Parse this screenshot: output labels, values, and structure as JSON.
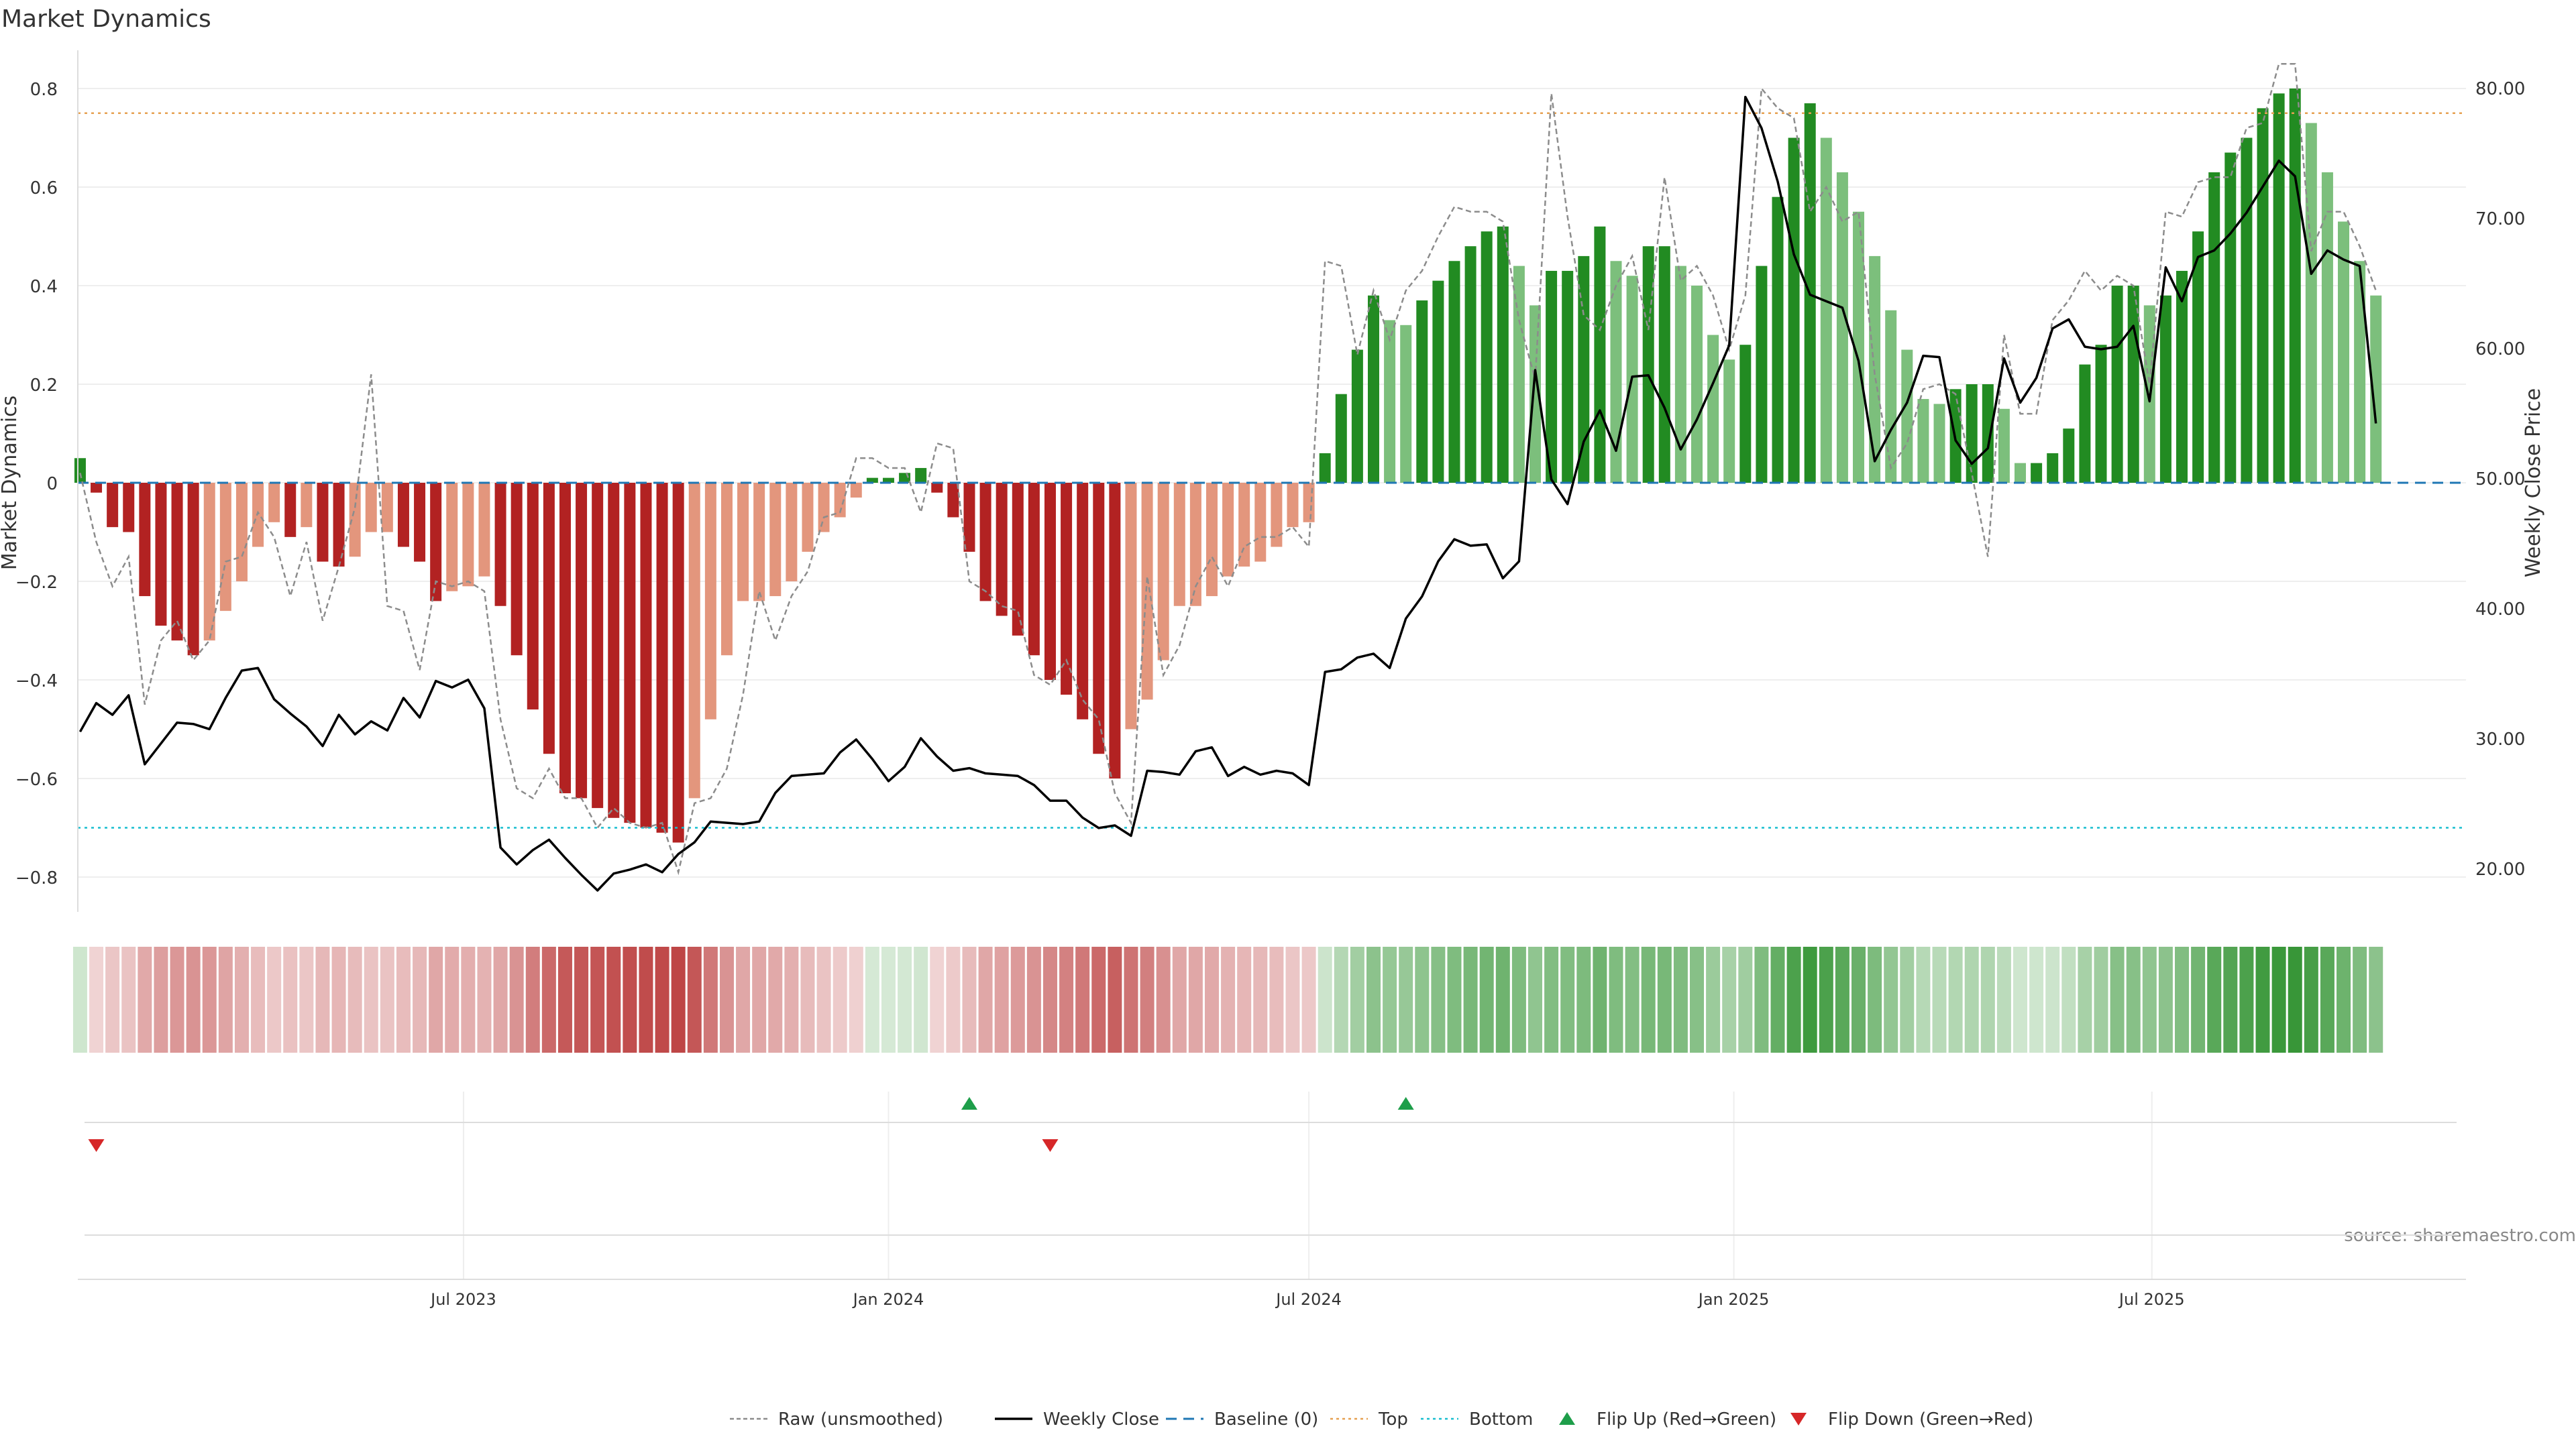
{
  "title": "Market Dynamics",
  "source": "source: sharemaestro.com",
  "colors": {
    "strong_green": "#228b22",
    "light_green": "#7cbf7c",
    "strong_red": "#b22222",
    "light_red": "#e3967d",
    "weekly_close": "#000000",
    "raw": "#8c8c8c",
    "baseline": "#1f77b4",
    "top": "#e6a050",
    "bottom": "#17becf",
    "flip_up": "#1e9e4a",
    "flip_down": "#d62728"
  },
  "legend": [
    {
      "label": "Raw (unsmoothed)",
      "kind": "raw"
    },
    {
      "label": "Weekly Close",
      "kind": "close"
    },
    {
      "label": "Baseline (0)",
      "kind": "baseline"
    },
    {
      "label": "Top",
      "kind": "top"
    },
    {
      "label": "Bottom",
      "kind": "bottom"
    },
    {
      "label": "Flip Up (Red→Green)",
      "kind": "flip_up"
    },
    {
      "label": "Flip Down (Green→Red)",
      "kind": "flip_down"
    }
  ],
  "chart_data": {
    "type": "bar",
    "title": "Market Dynamics",
    "ylabel": "Market Dynamics",
    "y2label": "Weekly Close Price",
    "ylim": [
      -0.87,
      0.87
    ],
    "y2lim": [
      16.0,
      82.5
    ],
    "yticks": [
      -0.8,
      -0.6,
      -0.4,
      -0.2,
      0,
      0.2,
      0.4,
      0.6,
      0.8
    ],
    "ytick_labels": [
      "−0.8",
      "−0.6",
      "−0.4",
      "−0.2",
      "0",
      "0.2",
      "0.4",
      "0.6",
      "0.8"
    ],
    "y2ticks": [
      20,
      30,
      40,
      50,
      60,
      70,
      80
    ],
    "y2tick_labels": [
      "20.00",
      "30.00",
      "40.00",
      "50.00",
      "60.00",
      "70.00",
      "80.00"
    ],
    "xlim": [
      "2023-01-15",
      "2025-11-14"
    ],
    "xticks": [
      "2023-07-01",
      "2024-01-01",
      "2024-07-01",
      "2025-01-01",
      "2025-07-01"
    ],
    "xtick_labels": [
      "Jul 2023",
      "Jan 2024",
      "Jul 2024",
      "Jan 2025",
      "Jul 2025"
    ],
    "top_level": 0.75,
    "bottom_level": -0.7,
    "baseline": 0,
    "start_date": "2023-01-16",
    "dynamics": [
      0.05,
      -0.02,
      -0.09,
      -0.1,
      -0.23,
      -0.29,
      -0.32,
      -0.35,
      -0.32,
      -0.26,
      -0.2,
      -0.13,
      -0.08,
      -0.11,
      -0.09,
      -0.16,
      -0.17,
      -0.15,
      -0.1,
      -0.1,
      -0.13,
      -0.16,
      -0.24,
      -0.22,
      -0.21,
      -0.19,
      -0.25,
      -0.35,
      -0.46,
      -0.55,
      -0.63,
      -0.64,
      -0.66,
      -0.68,
      -0.69,
      -0.7,
      -0.71,
      -0.73,
      -0.64,
      -0.48,
      -0.35,
      -0.24,
      -0.24,
      -0.23,
      -0.2,
      -0.14,
      -0.1,
      -0.07,
      -0.03,
      0.01,
      0.01,
      0.02,
      0.03,
      -0.02,
      -0.07,
      -0.14,
      -0.24,
      -0.27,
      -0.31,
      -0.35,
      -0.4,
      -0.43,
      -0.48,
      -0.55,
      -0.6,
      -0.5,
      -0.44,
      -0.36,
      -0.25,
      -0.25,
      -0.23,
      -0.19,
      -0.17,
      -0.16,
      -0.13,
      -0.09,
      -0.08,
      0.06,
      0.18,
      0.27,
      0.38,
      0.33,
      0.32,
      0.37,
      0.41,
      0.45,
      0.48,
      0.51,
      0.52,
      0.44,
      0.36,
      0.43,
      0.43,
      0.46,
      0.52,
      0.45,
      0.42,
      0.48,
      0.48,
      0.44,
      0.4,
      0.3,
      0.25,
      0.28,
      0.44,
      0.58,
      0.7,
      0.77,
      0.7,
      0.63,
      0.55,
      0.46,
      0.35,
      0.27,
      0.17,
      0.16,
      0.19,
      0.2,
      0.2,
      0.15,
      0.04,
      0.04,
      0.06,
      0.11,
      0.24,
      0.28,
      0.4,
      0.4,
      0.36,
      0.38,
      0.43,
      0.51,
      0.63,
      0.67,
      0.7,
      0.76,
      0.79,
      0.8,
      0.73,
      0.63,
      0.53,
      0.45,
      0.38
    ],
    "weekly_close": [
      30.5,
      32.7,
      31.8,
      33.3,
      28.0,
      29.6,
      31.2,
      31.1,
      30.7,
      33.1,
      35.2,
      35.4,
      33.0,
      31.9,
      30.9,
      29.4,
      31.8,
      30.3,
      31.3,
      30.6,
      33.1,
      31.6,
      34.4,
      33.9,
      34.5,
      32.3,
      21.6,
      20.3,
      21.4,
      22.2,
      20.8,
      19.5,
      18.3,
      19.6,
      19.9,
      20.3,
      19.7,
      21.1,
      22.0,
      23.6,
      23.5,
      23.4,
      23.6,
      25.8,
      27.1,
      27.2,
      27.3,
      28.9,
      29.9,
      28.4,
      26.7,
      27.8,
      30.0,
      28.6,
      27.5,
      27.7,
      27.3,
      27.2,
      27.1,
      26.4,
      25.2,
      25.2,
      23.9,
      23.1,
      23.3,
      22.5,
      27.5,
      27.4,
      27.2,
      29.0,
      29.3,
      27.1,
      27.8,
      27.2,
      27.5,
      27.3,
      26.4,
      35.1,
      35.3,
      36.2,
      36.5,
      35.4,
      39.2,
      40.9,
      43.6,
      45.3,
      44.8,
      44.9,
      42.3,
      43.6,
      58.3,
      49.9,
      48.0,
      52.8,
      55.2,
      52.1,
      57.8,
      57.9,
      55.4,
      52.2,
      54.5,
      57.3,
      60.2,
      79.3,
      76.9,
      72.8,
      67.2,
      64.1,
      63.6,
      63.1,
      59.0,
      51.3,
      53.7,
      55.8,
      59.4,
      59.3,
      52.9,
      51.1,
      52.3,
      59.2,
      55.8,
      57.7,
      61.5,
      62.2,
      60.1,
      59.9,
      60.1,
      61.7,
      55.9,
      66.2,
      63.6,
      67.0,
      67.5,
      68.8,
      70.4,
      72.4,
      74.4,
      73.2,
      65.7,
      67.5,
      66.8,
      66.3,
      54.2
    ],
    "raw": [
      0.02,
      -0.12,
      -0.21,
      -0.15,
      -0.45,
      -0.32,
      -0.28,
      -0.36,
      -0.32,
      -0.16,
      -0.15,
      -0.06,
      -0.11,
      -0.23,
      -0.12,
      -0.28,
      -0.17,
      -0.05,
      0.22,
      -0.25,
      -0.26,
      -0.38,
      -0.2,
      -0.21,
      -0.2,
      -0.22,
      -0.48,
      -0.62,
      -0.64,
      -0.58,
      -0.64,
      -0.64,
      -0.7,
      -0.66,
      -0.69,
      -0.7,
      -0.69,
      -0.79,
      -0.65,
      -0.64,
      -0.58,
      -0.43,
      -0.22,
      -0.32,
      -0.23,
      -0.18,
      -0.07,
      -0.06,
      0.05,
      0.05,
      0.03,
      0.03,
      -0.06,
      0.08,
      0.07,
      -0.2,
      -0.22,
      -0.25,
      -0.26,
      -0.39,
      -0.41,
      -0.36,
      -0.44,
      -0.48,
      -0.63,
      -0.69,
      -0.19,
      -0.39,
      -0.33,
      -0.21,
      -0.15,
      -0.21,
      -0.13,
      -0.11,
      -0.11,
      -0.09,
      -0.13,
      0.45,
      0.44,
      0.26,
      0.39,
      0.29,
      0.39,
      0.43,
      0.5,
      0.56,
      0.55,
      0.55,
      0.53,
      0.33,
      0.21,
      0.79,
      0.54,
      0.34,
      0.31,
      0.4,
      0.46,
      0.31,
      0.62,
      0.41,
      0.44,
      0.38,
      0.27,
      0.38,
      0.8,
      0.76,
      0.74,
      0.55,
      0.6,
      0.53,
      0.55,
      0.22,
      0.03,
      0.08,
      0.19,
      0.2,
      0.18,
      0.02,
      -0.15,
      0.3,
      0.14,
      0.14,
      0.33,
      0.37,
      0.43,
      0.39,
      0.42,
      0.4,
      0.2,
      0.55,
      0.54,
      0.61,
      0.62,
      0.62,
      0.72,
      0.73,
      0.85,
      0.85,
      0.47,
      0.55,
      0.55,
      0.48,
      0.39
    ],
    "flip_up_dates": [
      "2024-02-05",
      "2024-08-12"
    ],
    "flip_down_dates": [
      "2023-01-23",
      "2024-03-11"
    ]
  }
}
